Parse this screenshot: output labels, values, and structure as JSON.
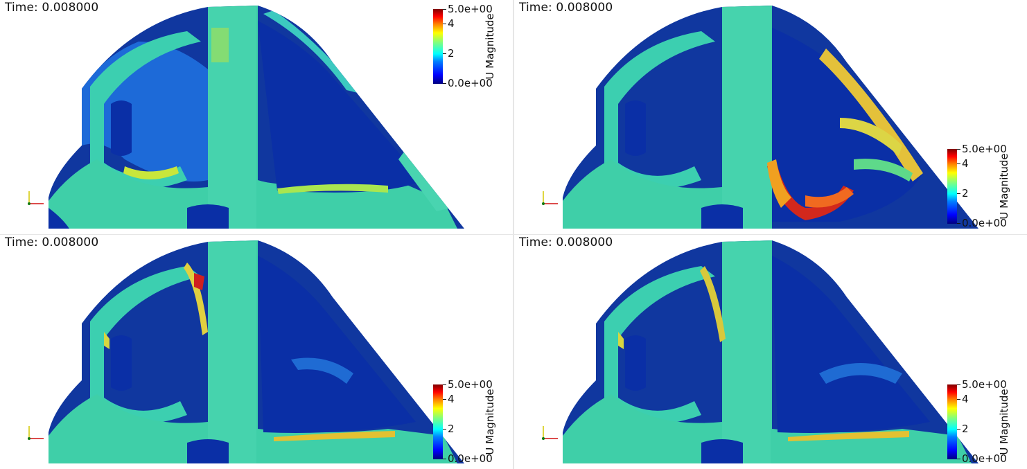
{
  "views": [
    {
      "time_label": "Time: 0.008000",
      "colorbar": {
        "title": "U Magnitude",
        "max_label": "5.0e+00",
        "min_label": "0.0e+00",
        "ticks": [
          "4",
          "2"
        ]
      },
      "colorbar_position": "top-right"
    },
    {
      "time_label": "Time: 0.008000",
      "colorbar": {
        "title": "U Magnitude",
        "max_label": "5.0e+00",
        "min_label": "0.0e+00",
        "ticks": [
          "4",
          "2"
        ]
      },
      "colorbar_position": "bottom-right"
    },
    {
      "time_label": "Time: 0.008000",
      "colorbar": {
        "title": "U Magnitude",
        "max_label": "5.0e+00",
        "min_label": "0.0e+00",
        "ticks": [
          "4",
          "2"
        ]
      },
      "colorbar_position": "bottom-right"
    },
    {
      "time_label": "Time: 0.008000",
      "colorbar": {
        "title": "U Magnitude",
        "max_label": "5.0e+00",
        "min_label": "0.0e+00",
        "ticks": [
          "4",
          "2"
        ]
      },
      "colorbar_position": "bottom-right"
    }
  ],
  "colormap": {
    "name": "jet",
    "range": [
      0,
      5
    ]
  },
  "colors": {
    "low": "#00007f",
    "mid": "#3fcfa8",
    "high": "#7f0000"
  }
}
